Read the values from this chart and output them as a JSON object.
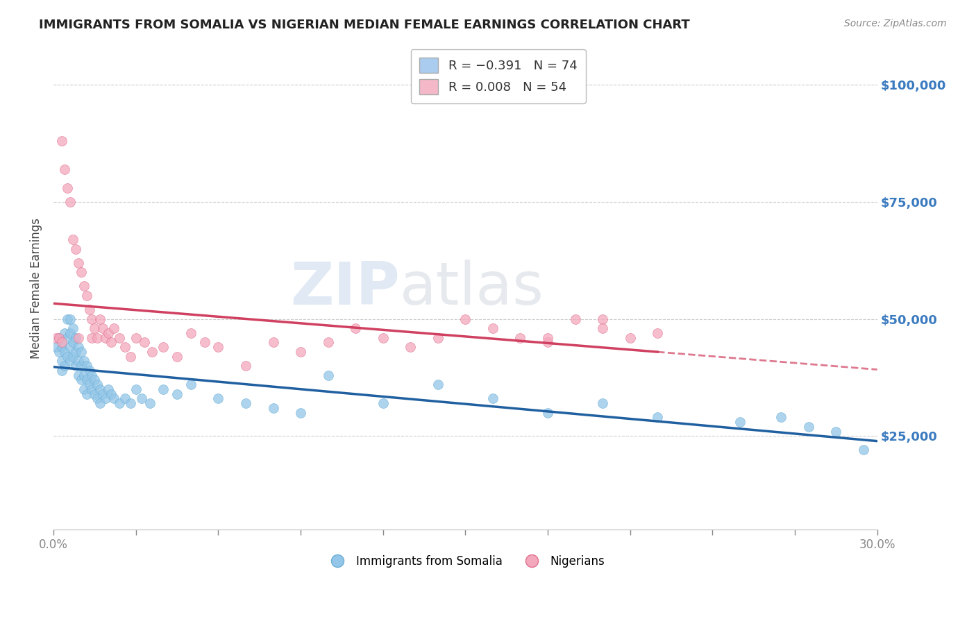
{
  "title": "IMMIGRANTS FROM SOMALIA VS NIGERIAN MEDIAN FEMALE EARNINGS CORRELATION CHART",
  "source": "Source: ZipAtlas.com",
  "ylabel": "Median Female Earnings",
  "y_ticks": [
    25000,
    50000,
    75000,
    100000
  ],
  "y_tick_labels": [
    "$25,000",
    "$50,000",
    "$75,000",
    "$100,000"
  ],
  "xlim": [
    0.0,
    0.3
  ],
  "ylim": [
    5000,
    108000
  ],
  "watermark_zip": "ZIP",
  "watermark_atlas": "atlas",
  "somalia_color": "#93c6e8",
  "somalia_edge_color": "#6aaed6",
  "nigeria_color": "#f4a8bc",
  "nigeria_edge_color": "#e07090",
  "somalia_line_color": "#2060a0",
  "nigeria_line_color": "#d04060",
  "grid_color": "#cccccc",
  "background_color": "#ffffff",
  "legend_labels": [
    "Immigrants from Somalia",
    "Nigerians"
  ],
  "legend_patch_somalia": "#aaccee",
  "legend_patch_nigeria": "#f4b8c8",
  "title_color": "#222222",
  "source_color": "#888888",
  "ylabel_color": "#444444",
  "tick_label_color": "#3a7abf",
  "bottom_tick_color": "#888888",
  "somalia_points_x": [
    0.001,
    0.002,
    0.002,
    0.003,
    0.003,
    0.003,
    0.004,
    0.004,
    0.004,
    0.005,
    0.005,
    0.005,
    0.006,
    0.006,
    0.006,
    0.006,
    0.007,
    0.007,
    0.007,
    0.008,
    0.008,
    0.008,
    0.009,
    0.009,
    0.009,
    0.01,
    0.01,
    0.01,
    0.011,
    0.011,
    0.011,
    0.012,
    0.012,
    0.012,
    0.013,
    0.013,
    0.014,
    0.014,
    0.015,
    0.015,
    0.016,
    0.016,
    0.017,
    0.017,
    0.018,
    0.019,
    0.02,
    0.021,
    0.022,
    0.024,
    0.026,
    0.028,
    0.03,
    0.032,
    0.035,
    0.04,
    0.045,
    0.05,
    0.06,
    0.07,
    0.08,
    0.09,
    0.1,
    0.12,
    0.14,
    0.16,
    0.18,
    0.2,
    0.22,
    0.25,
    0.265,
    0.275,
    0.285,
    0.295
  ],
  "somalia_points_y": [
    44000,
    43000,
    46000,
    44000,
    41000,
    39000,
    47000,
    43000,
    40000,
    50000,
    46000,
    42000,
    50000,
    47000,
    44000,
    41000,
    48000,
    45000,
    42000,
    46000,
    43000,
    40000,
    44000,
    41000,
    38000,
    43000,
    40000,
    37000,
    41000,
    38000,
    35000,
    40000,
    37000,
    34000,
    39000,
    36000,
    38000,
    35000,
    37000,
    34000,
    36000,
    33000,
    35000,
    32000,
    34000,
    33000,
    35000,
    34000,
    33000,
    32000,
    33000,
    32000,
    35000,
    33000,
    32000,
    35000,
    34000,
    36000,
    33000,
    32000,
    31000,
    30000,
    38000,
    32000,
    36000,
    33000,
    30000,
    32000,
    29000,
    28000,
    29000,
    27000,
    26000,
    22000
  ],
  "nigeria_points_x": [
    0.001,
    0.002,
    0.003,
    0.003,
    0.004,
    0.005,
    0.006,
    0.007,
    0.008,
    0.009,
    0.009,
    0.01,
    0.011,
    0.012,
    0.013,
    0.014,
    0.014,
    0.015,
    0.016,
    0.017,
    0.018,
    0.019,
    0.02,
    0.021,
    0.022,
    0.024,
    0.026,
    0.028,
    0.03,
    0.033,
    0.036,
    0.04,
    0.045,
    0.05,
    0.055,
    0.06,
    0.07,
    0.08,
    0.09,
    0.1,
    0.11,
    0.12,
    0.13,
    0.14,
    0.15,
    0.16,
    0.17,
    0.18,
    0.2,
    0.22,
    0.18,
    0.19,
    0.2,
    0.21
  ],
  "nigeria_points_y": [
    46000,
    46000,
    88000,
    45000,
    82000,
    78000,
    75000,
    67000,
    65000,
    62000,
    46000,
    60000,
    57000,
    55000,
    52000,
    50000,
    46000,
    48000,
    46000,
    50000,
    48000,
    46000,
    47000,
    45000,
    48000,
    46000,
    44000,
    42000,
    46000,
    45000,
    43000,
    44000,
    42000,
    47000,
    45000,
    44000,
    40000,
    45000,
    43000,
    45000,
    48000,
    46000,
    44000,
    46000,
    50000,
    48000,
    46000,
    45000,
    50000,
    47000,
    46000,
    50000,
    48000,
    46000
  ]
}
